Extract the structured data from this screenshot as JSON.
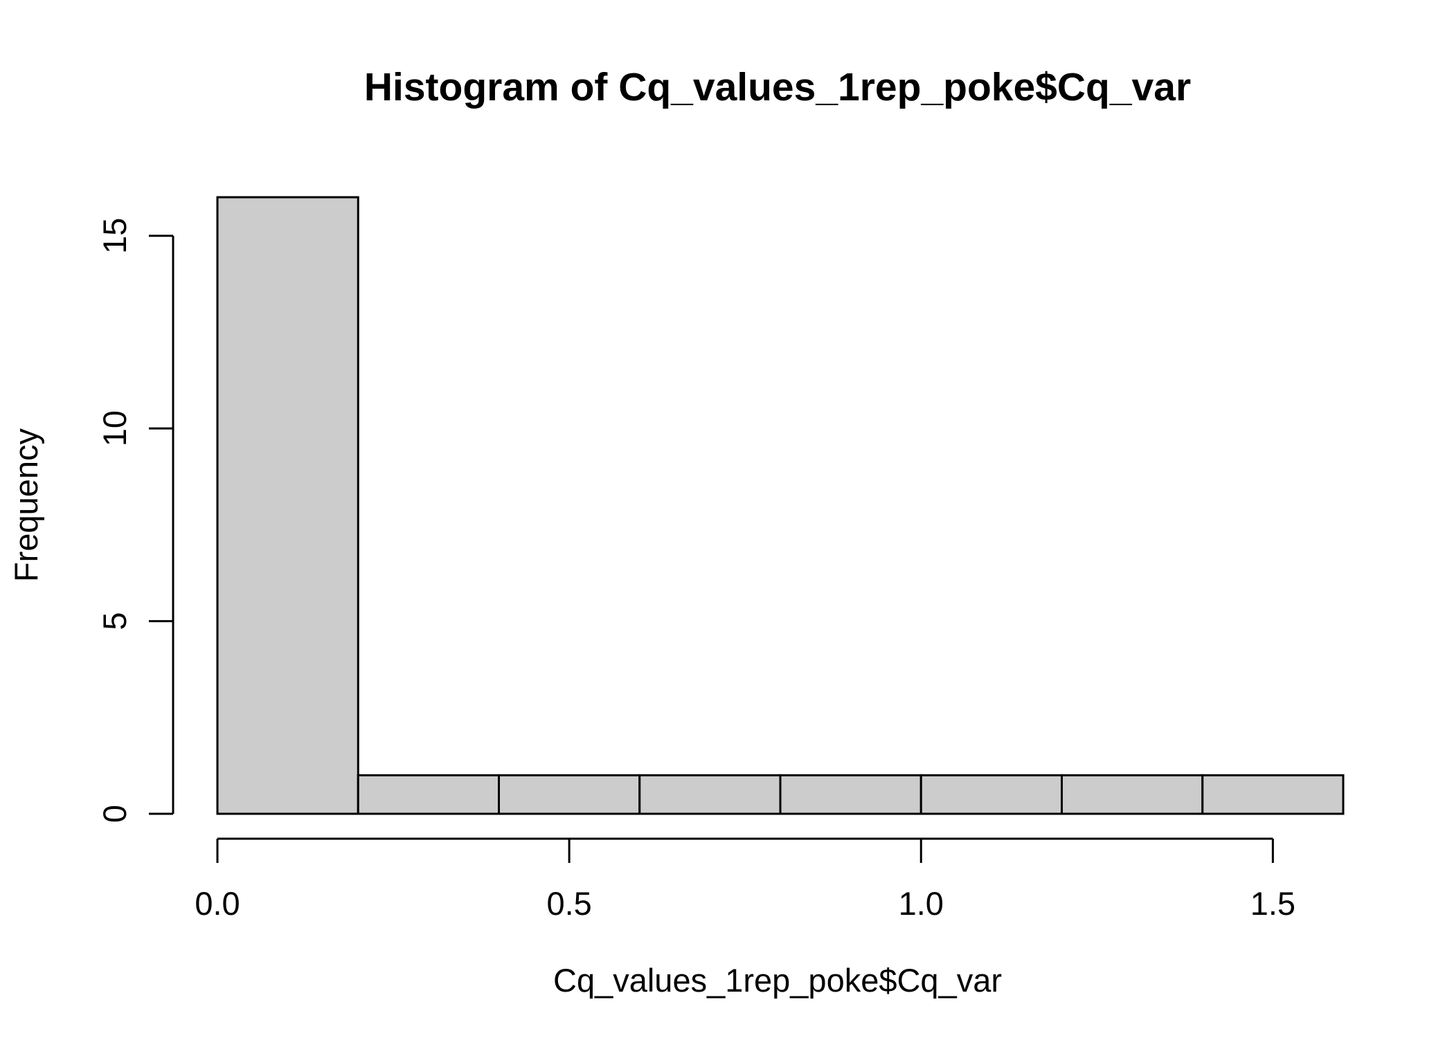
{
  "chart_data": {
    "type": "bar",
    "title": "Histogram of Cq_values_1rep_poke$Cq_var",
    "xlabel": "Cq_values_1rep_poke$Cq_var",
    "ylabel": "Frequency",
    "breaks": [
      0.0,
      0.2,
      0.4,
      0.6,
      0.8,
      1.0,
      1.2,
      1.4,
      1.6
    ],
    "categories": [
      "0.0-0.2",
      "0.2-0.4",
      "0.4-0.6",
      "0.6-0.8",
      "0.8-1.0",
      "1.0-1.2",
      "1.2-1.4",
      "1.4-1.6"
    ],
    "values": [
      16,
      1,
      1,
      1,
      1,
      1,
      1,
      1
    ],
    "xlim": [
      0.0,
      1.6
    ],
    "ylim": [
      0,
      16
    ],
    "x_ticks": [
      0.0,
      0.5,
      1.0,
      1.5
    ],
    "x_tick_labels": [
      "0.0",
      "0.5",
      "1.0",
      "1.5"
    ],
    "y_ticks": [
      0,
      5,
      10,
      15
    ],
    "y_tick_labels": [
      "0",
      "5",
      "10",
      "15"
    ],
    "grid": false,
    "legend": "none",
    "bar_color": "#cccccc",
    "edge_color": "#000000"
  }
}
